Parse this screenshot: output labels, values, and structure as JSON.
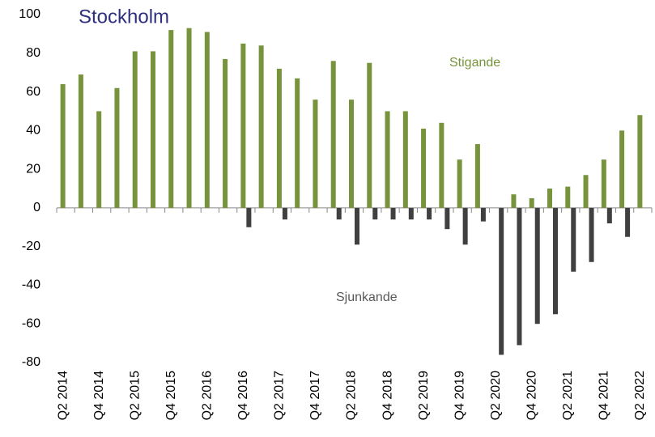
{
  "chart_data": {
    "type": "bar",
    "title": "Stockholm",
    "categories": [
      "Q2 2014",
      null,
      "Q4 2014",
      null,
      "Q2 2015",
      null,
      "Q4 2015",
      null,
      "Q2 2016",
      null,
      "Q4 2016",
      null,
      "Q2 2017",
      null,
      "Q4 2017",
      null,
      "Q2 2018",
      null,
      "Q4 2018",
      null,
      "Q2 2019",
      null,
      "Q4 2019",
      null,
      "Q2 2020",
      null,
      "Q4 2020",
      null,
      "Q2 2021",
      null,
      "Q4 2021",
      null,
      "Q2 2022"
    ],
    "series": [
      {
        "name": "Stigande",
        "color": "#77933c",
        "values": [
          64,
          69,
          50,
          62,
          81,
          81,
          92,
          93,
          91,
          77,
          85,
          84,
          72,
          67,
          56,
          76,
          56,
          75,
          50,
          50,
          41,
          44,
          25,
          33,
          0,
          7,
          5,
          10,
          11,
          17,
          25,
          40,
          48
        ]
      },
      {
        "name": "Sjunkande",
        "color": "#404040",
        "values": [
          0,
          0,
          0,
          0,
          0,
          0,
          0,
          0,
          0,
          0,
          -10,
          0,
          -6,
          0,
          0,
          -6,
          -19,
          -6,
          -6,
          -6,
          -6,
          -11,
          -19,
          -7,
          -76,
          -71,
          -60,
          -55,
          -33,
          -28,
          -8,
          -15,
          0
        ]
      }
    ],
    "ylim": [
      -80,
      100
    ],
    "yticks": [
      -80,
      -60,
      -40,
      -20,
      0,
      20,
      40,
      60,
      80,
      100
    ]
  }
}
